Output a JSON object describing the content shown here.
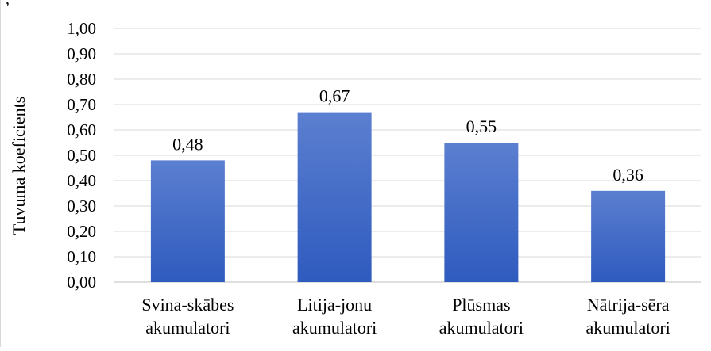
{
  "caption_fragment": ", ",
  "chart_data": {
    "type": "bar",
    "title": "",
    "xlabel": "",
    "ylabel": "Tuvuma koeficients",
    "ylim": [
      0,
      1
    ],
    "ytick_step": 0.1,
    "ytick_labels": [
      "0,00",
      "0,10",
      "0,20",
      "0,30",
      "0,40",
      "0,50",
      "0,60",
      "0,70",
      "0,80",
      "0,90",
      "1,00"
    ],
    "categories": [
      [
        "Svina-skābes",
        "akumulatori"
      ],
      [
        "Litija-jonu",
        "akumulatori"
      ],
      [
        "Plūsmas",
        "akumulatori"
      ],
      [
        "Nātrija-sēra",
        "akumulatori"
      ]
    ],
    "values": [
      0.48,
      0.67,
      0.55,
      0.36
    ],
    "data_labels": [
      "0,48",
      "0,67",
      "0,55",
      "0,36"
    ],
    "grid": true,
    "legend": "none",
    "colors": {
      "bar_top": "#5b7fd0",
      "bar_bottom": "#2f5bbf",
      "grid": "#d9d9d9",
      "axis": "#bfbfbf"
    }
  }
}
